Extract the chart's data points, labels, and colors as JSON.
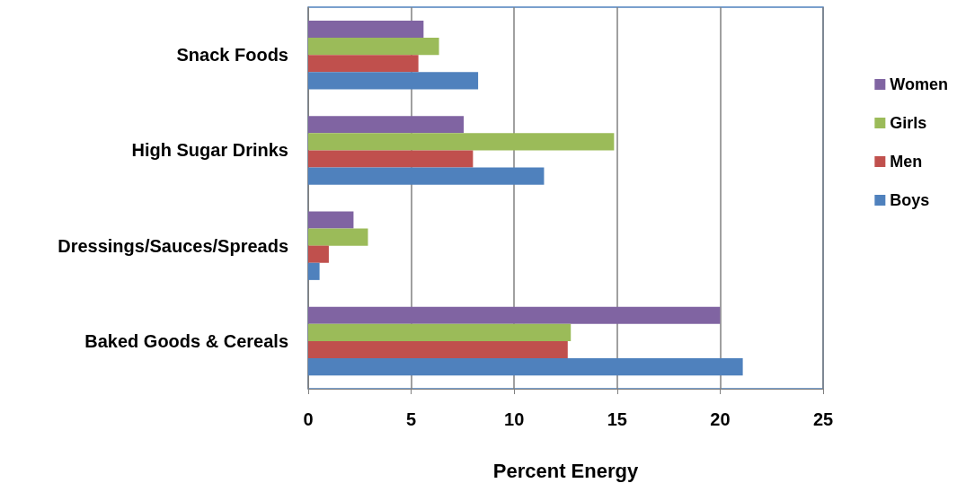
{
  "chart_data": {
    "type": "bar",
    "orientation": "horizontal",
    "xlabel": "Percent Energy",
    "categories": [
      "Snack Foods",
      "High Sugar Drinks",
      "Dressings/Sauces/Spreads",
      "Baked Goods & Cereals"
    ],
    "series": [
      {
        "name": "Women",
        "color": "#8064a2",
        "values": [
          5.6,
          7.55,
          2.2,
          20.0
        ]
      },
      {
        "name": "Girls",
        "color": "#9bbb59",
        "values": [
          6.35,
          14.85,
          2.9,
          12.75
        ]
      },
      {
        "name": "Men",
        "color": "#c0504d",
        "values": [
          5.35,
          8.0,
          1.0,
          12.6
        ]
      },
      {
        "name": "Boys",
        "color": "#4f81bd",
        "values": [
          8.25,
          11.45,
          0.55,
          21.1
        ]
      }
    ],
    "xlim": [
      0,
      25
    ],
    "xticks": [
      0,
      5,
      10,
      15,
      20,
      25
    ],
    "grid": "x",
    "legend": "right"
  }
}
